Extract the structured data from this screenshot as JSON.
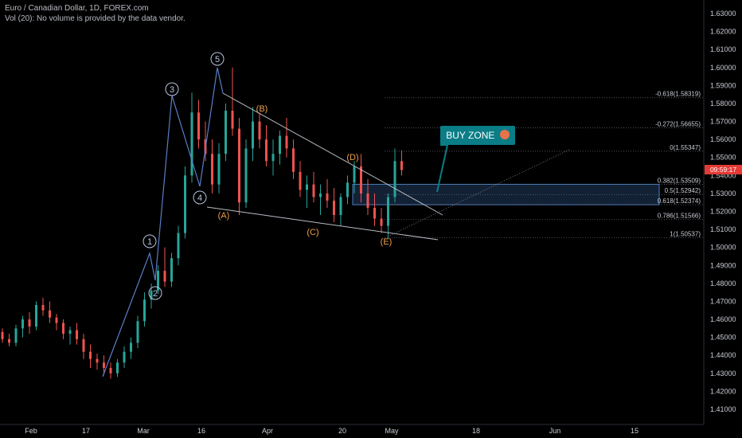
{
  "header": {
    "symbol_line": "Euro / Canadian Dollar, 1D, FOREX.com",
    "volume_line": "Vol (20): No volume is provided by the data vendor."
  },
  "buy_zone": {
    "label": "BUY ZONE",
    "icon": "rocket-emoji-icon"
  },
  "price_tag": "09:59:17",
  "colors": {
    "up": "#26a69a",
    "down": "#ef5350",
    "wave": "#5b7ec8",
    "abc": "#f0a04b",
    "zone": "#0a7d86"
  },
  "chart_data": {
    "type": "candlestick",
    "instrument": "Euro / Canadian Dollar",
    "timeframe": "1D",
    "ylim": [
      1.405,
      1.635
    ],
    "y_ticks": [
      "1.41000",
      "1.42000",
      "1.43000",
      "1.44000",
      "1.45000",
      "1.46000",
      "1.47000",
      "1.48000",
      "1.49000",
      "1.50000",
      "1.51000",
      "1.52000",
      "1.53000",
      "1.54000",
      "1.55000",
      "1.56000",
      "1.57000",
      "1.58000",
      "1.59000",
      "1.60000",
      "1.61000",
      "1.62000",
      "1.63000"
    ],
    "x_ticks": [
      "Feb",
      "17",
      "Mar",
      "16",
      "Apr",
      "20",
      "May",
      "18",
      "Jun",
      "15"
    ],
    "current_price": 1.5432,
    "fib_levels": [
      {
        "label": "-0.618(1.58319)",
        "value": 1.58319
      },
      {
        "label": "-0.272(1.56655)",
        "value": 1.56655
      },
      {
        "label": "0(1.55347)",
        "value": 1.55347
      },
      {
        "label": "0.382(1.53509)",
        "value": 1.53509
      },
      {
        "label": "0.5(1.52942)",
        "value": 1.52942
      },
      {
        "label": "0.618(1.52374)",
        "value": 1.52374
      },
      {
        "label": "0.786(1.51566)",
        "value": 1.51566
      },
      {
        "label": "1(1.50537)",
        "value": 1.50537
      }
    ],
    "impulse_labels": [
      {
        "label": "1",
        "value": 1.499
      },
      {
        "label": "2",
        "value": 1.476
      },
      {
        "label": "3",
        "value": 1.59
      },
      {
        "label": "4",
        "value": 1.524
      },
      {
        "label": "5",
        "value": 1.605
      }
    ],
    "correction_labels": [
      {
        "label": "(A)",
        "value": 1.519
      },
      {
        "label": "(B)",
        "value": 1.575
      },
      {
        "label": "(C)",
        "value": 1.51
      },
      {
        "label": "(D)",
        "value": 1.55
      },
      {
        "label": "(E)",
        "value": 1.502
      }
    ],
    "candles": [
      [
        1.453,
        1.455,
        1.447,
        1.449
      ],
      [
        1.449,
        1.452,
        1.445,
        1.447
      ],
      [
        1.447,
        1.457,
        1.445,
        1.455
      ],
      [
        1.455,
        1.462,
        1.45,
        1.46
      ],
      [
        1.46,
        1.464,
        1.452,
        1.456
      ],
      [
        1.456,
        1.47,
        1.454,
        1.468
      ],
      [
        1.468,
        1.472,
        1.462,
        1.465
      ],
      [
        1.465,
        1.47,
        1.458,
        1.461
      ],
      [
        1.461,
        1.463,
        1.454,
        1.458
      ],
      [
        1.458,
        1.46,
        1.449,
        1.452
      ],
      [
        1.452,
        1.456,
        1.446,
        1.454
      ],
      [
        1.454,
        1.458,
        1.446,
        1.449
      ],
      [
        1.449,
        1.452,
        1.438,
        1.442
      ],
      [
        1.442,
        1.446,
        1.433,
        1.438
      ],
      [
        1.438,
        1.441,
        1.432,
        1.436
      ],
      [
        1.436,
        1.44,
        1.429,
        1.433
      ],
      [
        1.433,
        1.436,
        1.427,
        1.43
      ],
      [
        1.43,
        1.438,
        1.428,
        1.436
      ],
      [
        1.436,
        1.445,
        1.433,
        1.442
      ],
      [
        1.442,
        1.45,
        1.438,
        1.447
      ],
      [
        1.447,
        1.462,
        1.444,
        1.459
      ],
      [
        1.459,
        1.475,
        1.456,
        1.471
      ],
      [
        1.471,
        1.48,
        1.466,
        1.476
      ],
      [
        1.476,
        1.49,
        1.474,
        1.487
      ],
      [
        1.487,
        1.5,
        1.478,
        1.481
      ],
      [
        1.481,
        1.497,
        1.478,
        1.494
      ],
      [
        1.494,
        1.512,
        1.49,
        1.508
      ],
      [
        1.508,
        1.545,
        1.505,
        1.54
      ],
      [
        1.54,
        1.586,
        1.536,
        1.575
      ],
      [
        1.575,
        1.582,
        1.555,
        1.56
      ],
      [
        1.56,
        1.57,
        1.548,
        1.552
      ],
      [
        1.552,
        1.56,
        1.53,
        1.535
      ],
      [
        1.535,
        1.558,
        1.53,
        1.552
      ],
      [
        1.552,
        1.58,
        1.548,
        1.576
      ],
      [
        1.576,
        1.6,
        1.562,
        1.566
      ],
      [
        1.566,
        1.572,
        1.518,
        1.525
      ],
      [
        1.525,
        1.56,
        1.522,
        1.555
      ],
      [
        1.555,
        1.578,
        1.548,
        1.57
      ],
      [
        1.57,
        1.575,
        1.555,
        1.56
      ],
      [
        1.56,
        1.568,
        1.545,
        1.548
      ],
      [
        1.548,
        1.56,
        1.54,
        1.552
      ],
      [
        1.552,
        1.565,
        1.546,
        1.562
      ],
      [
        1.562,
        1.572,
        1.55,
        1.555
      ],
      [
        1.555,
        1.56,
        1.538,
        1.542
      ],
      [
        1.542,
        1.548,
        1.528,
        1.532
      ],
      [
        1.532,
        1.54,
        1.522,
        1.535
      ],
      [
        1.535,
        1.542,
        1.525,
        1.528
      ],
      [
        1.528,
        1.535,
        1.518,
        1.53
      ],
      [
        1.53,
        1.538,
        1.522,
        1.526
      ],
      [
        1.526,
        1.533,
        1.514,
        1.518
      ],
      [
        1.518,
        1.53,
        1.512,
        1.528
      ],
      [
        1.528,
        1.54,
        1.524,
        1.536
      ],
      [
        1.536,
        1.548,
        1.53,
        1.545
      ],
      [
        1.545,
        1.552,
        1.525,
        1.53
      ],
      [
        1.53,
        1.538,
        1.518,
        1.522
      ],
      [
        1.522,
        1.53,
        1.512,
        1.516
      ],
      [
        1.516,
        1.522,
        1.508,
        1.512
      ],
      [
        1.512,
        1.53,
        1.505,
        1.528
      ],
      [
        1.528,
        1.555,
        1.525,
        1.548
      ],
      [
        1.548,
        1.554,
        1.54,
        1.543
      ]
    ]
  }
}
